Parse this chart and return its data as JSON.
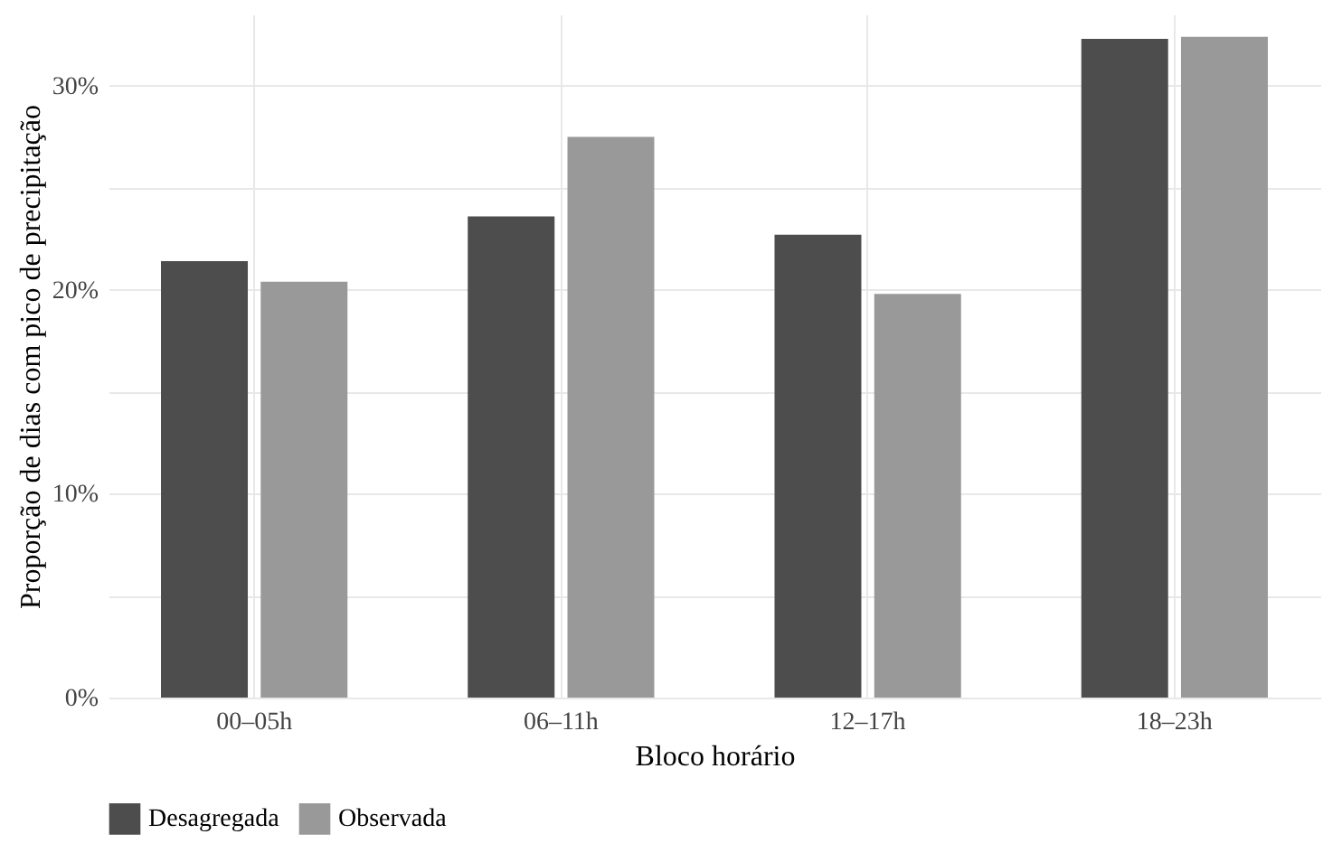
{
  "chart_data": {
    "type": "bar",
    "xlabel": "Bloco horário",
    "ylabel": "Proporção de dias com pico de precipitação",
    "categories": [
      "00–05h",
      "06–11h",
      "12–17h",
      "18–23h"
    ],
    "series": [
      {
        "name": "Desagregada",
        "color": "#4d4d4d",
        "values": [
          21.4,
          23.6,
          22.7,
          32.3
        ]
      },
      {
        "name": "Observada",
        "color": "#999999",
        "values": [
          20.4,
          27.5,
          19.8,
          32.4
        ]
      }
    ],
    "ylim": [
      0,
      33.5
    ],
    "yticks": [
      {
        "value": 0,
        "label": "0%"
      },
      {
        "value": 5,
        "label": null
      },
      {
        "value": 10,
        "label": "10%"
      },
      {
        "value": 15,
        "label": null
      },
      {
        "value": 20,
        "label": "20%"
      },
      {
        "value": 25,
        "label": null
      },
      {
        "value": 30,
        "label": "30%"
      }
    ],
    "grid": true,
    "legend": "bottom"
  }
}
